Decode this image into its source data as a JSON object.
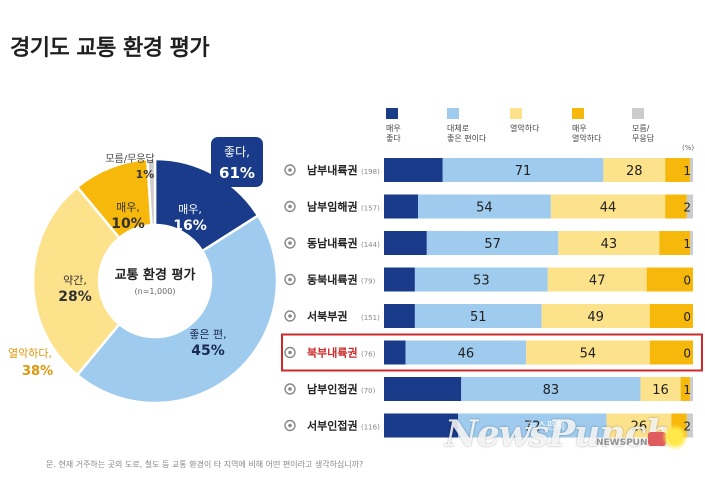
{
  "title": "경기도 교통 환경 평가",
  "footnote": "문. 현재 거주하는 곳의 도로, 철도 등 교통 환경이 타 지역에 비해 어떤 편이라고 생각하십니까?",
  "watermark": {
    "logo": "NewsPunch",
    "korean": "뉴스펀치",
    "small": "NEWSPUNCH"
  },
  "colors": {
    "very_good": "#1a3b8a",
    "fairly_good": "#9fcbee",
    "poor": "#fde28c",
    "very_poor": "#f6b80a",
    "dont_know": "#cccccc",
    "highlight": "#cc2a2a",
    "poor_text": "#e0960a",
    "good_box": "#1a3b8a"
  },
  "chart_data": [
    {
      "type": "pie",
      "title": "교통 환경 평가",
      "subtitle": "(n=1,000)",
      "slices": [
        {
          "name": "매우,",
          "value": 16,
          "label": "16%"
        },
        {
          "name": "좋은 편,",
          "value": 45,
          "label": "45%"
        },
        {
          "name": "약간,",
          "value": 28,
          "label": "28%"
        },
        {
          "name": "매우,",
          "value": 10,
          "label": "10%"
        },
        {
          "name": "모름/무응답",
          "value": 1,
          "label": "1%"
        }
      ],
      "group_good": {
        "label": "좋다,",
        "value": "61%"
      },
      "group_poor": {
        "label": "열악하다,",
        "value": "38%"
      }
    },
    {
      "type": "bar",
      "stacked": true,
      "orientation": "horizontal",
      "unit": "(%)",
      "legend": [
        "매우\n좋다",
        "대체로\n좋은 편이다",
        "열악하다",
        "매우\n열악하다",
        "모름/\n무응답"
      ],
      "categories": [
        {
          "name": "남부내륙권",
          "n": "(198)"
        },
        {
          "name": "남부임해권",
          "n": "(157)"
        },
        {
          "name": "동남내륙권",
          "n": "(144)"
        },
        {
          "name": "동북내륙권",
          "n": "(79)"
        },
        {
          "name": "서북부권",
          "n": "(151)"
        },
        {
          "name": "북부내륙권",
          "n": "(76)",
          "highlight": true
        },
        {
          "name": "남부인접권",
          "n": "(70)"
        },
        {
          "name": "서부인접권",
          "n": "(116)"
        }
      ],
      "good_total": [
        71,
        54,
        57,
        53,
        51,
        46,
        83,
        72
      ],
      "poor_total": [
        28,
        44,
        43,
        47,
        49,
        54,
        16,
        26
      ],
      "dont_know": [
        1,
        2,
        1,
        0,
        0,
        0,
        1,
        2
      ],
      "very_good_approx": [
        19,
        11,
        14,
        10,
        10,
        7,
        25,
        24
      ],
      "very_poor_approx": [
        8,
        7,
        10,
        15,
        14,
        14,
        3,
        5
      ]
    }
  ]
}
